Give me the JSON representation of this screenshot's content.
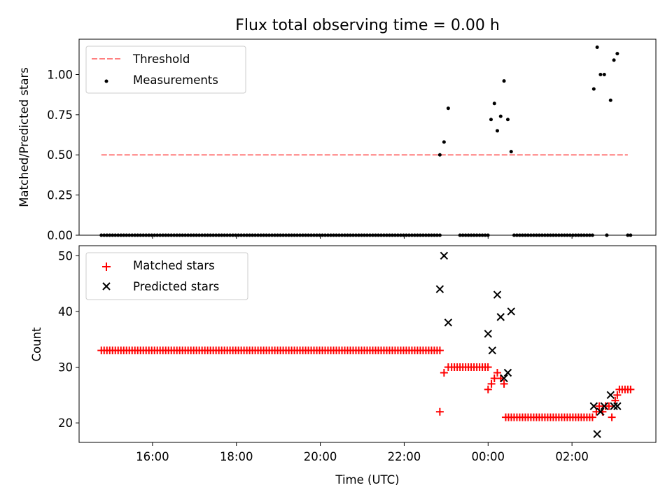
{
  "chart_data": [
    {
      "type": "scatter",
      "title": "Flux total observing time = 0.00 h",
      "xlabel": "",
      "ylabel": "Matched/Predicted stars",
      "xlim_hours": [
        14.25,
        28.0
      ],
      "ylim": [
        0.0,
        1.22
      ],
      "yticks": [
        0.0,
        0.25,
        0.5,
        0.75,
        1.0
      ],
      "ytick_labels": [
        "0.00",
        "0.25",
        "0.50",
        "0.75",
        "1.00"
      ],
      "legend_position": "top-left",
      "colors": {
        "threshold": "#ff7f7f",
        "measurements": "#000000"
      },
      "series": [
        {
          "name": "Threshold",
          "style": "dashed-line",
          "points": [
            [
              14.78,
              0.5
            ],
            [
              27.33,
              0.5
            ]
          ]
        },
        {
          "name": "Measurements",
          "style": "dot",
          "zero_runs": [
            [
              14.78,
              22.85,
              0.0667
            ],
            [
              23.33,
              23.97,
              0.0667
            ],
            [
              24.62,
              26.5,
              0.0667
            ],
            [
              26.83,
              26.83,
              0.0667
            ],
            [
              27.33,
              27.43,
              0.0667
            ]
          ],
          "points": [
            [
              22.85,
              0.5
            ],
            [
              22.95,
              0.58
            ],
            [
              23.05,
              0.79
            ],
            [
              24.07,
              0.72
            ],
            [
              24.15,
              0.82
            ],
            [
              24.22,
              0.65
            ],
            [
              24.3,
              0.74
            ],
            [
              24.38,
              0.96
            ],
            [
              24.47,
              0.72
            ],
            [
              24.55,
              0.52
            ],
            [
              26.52,
              0.91
            ],
            [
              26.6,
              1.17
            ],
            [
              26.68,
              1.0
            ],
            [
              26.77,
              1.0
            ],
            [
              26.83,
              0.0
            ],
            [
              26.92,
              0.84
            ],
            [
              27.0,
              1.09
            ],
            [
              27.08,
              1.13
            ]
          ]
        }
      ]
    },
    {
      "type": "scatter",
      "title": "",
      "xlabel": "Time (UTC)",
      "ylabel": "Count",
      "xlim_hours": [
        14.25,
        28.0
      ],
      "ylim": [
        16.5,
        51.8
      ],
      "yticks": [
        20,
        30,
        40,
        50
      ],
      "ytick_labels": [
        "20",
        "30",
        "40",
        "50"
      ],
      "xticks_hours": [
        16,
        18,
        20,
        22,
        24,
        26
      ],
      "xtick_labels": [
        "16:00",
        "18:00",
        "20:00",
        "22:00",
        "00:00",
        "02:00"
      ],
      "legend_position": "top-left",
      "colors": {
        "matched": "#ff0000",
        "predicted": "#000000"
      },
      "series": [
        {
          "name": "Matched stars",
          "marker": "+",
          "runs": [
            [
              14.78,
              22.85,
              0.0667,
              33
            ],
            [
              23.13,
              23.97,
              0.0667,
              30
            ],
            [
              24.42,
              26.5,
              0.0667,
              21
            ],
            [
              27.13,
              27.43,
              0.0667,
              26
            ]
          ],
          "points": [
            [
              22.85,
              22
            ],
            [
              22.95,
              29
            ],
            [
              23.05,
              30
            ],
            [
              24.0,
              26
            ],
            [
              24.08,
              27
            ],
            [
              24.15,
              28
            ],
            [
              24.22,
              29
            ],
            [
              24.3,
              28
            ],
            [
              24.38,
              27
            ],
            [
              26.58,
              22
            ],
            [
              26.65,
              23
            ],
            [
              26.73,
              22
            ],
            [
              26.8,
              23
            ],
            [
              26.88,
              23
            ],
            [
              26.95,
              21
            ],
            [
              27.03,
              24
            ],
            [
              27.08,
              25
            ]
          ]
        },
        {
          "name": "Predicted stars",
          "marker": "x",
          "points": [
            [
              22.85,
              44
            ],
            [
              22.95,
              50
            ],
            [
              23.05,
              38
            ],
            [
              24.0,
              36
            ],
            [
              24.1,
              33
            ],
            [
              24.22,
              43
            ],
            [
              24.3,
              39
            ],
            [
              24.38,
              28
            ],
            [
              24.47,
              29
            ],
            [
              24.55,
              40
            ],
            [
              26.52,
              23
            ],
            [
              26.6,
              18
            ],
            [
              26.68,
              22
            ],
            [
              26.77,
              23
            ],
            [
              26.92,
              25
            ],
            [
              27.0,
              23
            ],
            [
              27.08,
              23
            ]
          ]
        }
      ]
    }
  ]
}
